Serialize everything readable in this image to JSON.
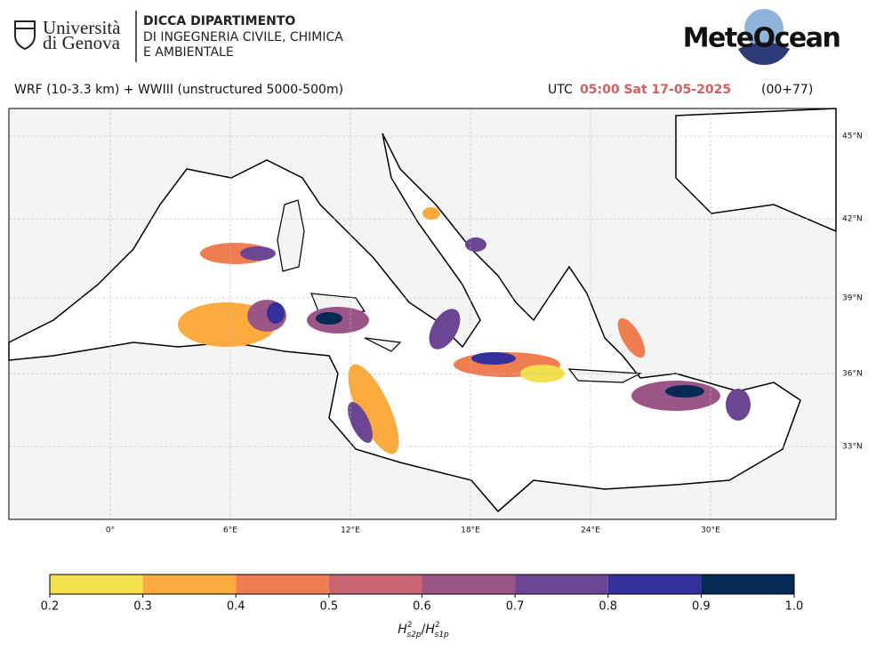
{
  "header": {
    "university": [
      "Università",
      "di Genova"
    ],
    "department": [
      "DICCA DIPARTIMENTO",
      "DI INGEGNERIA CIVILE, CHIMICA",
      "E AMBIENTALE"
    ],
    "logo": "MeteOcean"
  },
  "info": {
    "model": "WRF (10-3.3 km) + WWIII (unstructured 5000-500m)",
    "utc": "UTC",
    "time": "05:00 Sat 17-05-2025",
    "lead": "(00+77)"
  },
  "map": {
    "lon_ticks": [
      {
        "value": 0,
        "label": "0°"
      },
      {
        "value": 6,
        "label": "6°E"
      },
      {
        "value": 12,
        "label": "12°E"
      },
      {
        "value": 18,
        "label": "18°E"
      },
      {
        "value": 24,
        "label": "24°E"
      },
      {
        "value": 30,
        "label": "30°E"
      }
    ],
    "lat_ticks": [
      {
        "value": 45,
        "label": "45°N"
      },
      {
        "value": 42,
        "label": "42°N"
      },
      {
        "value": 39,
        "label": "39°N"
      },
      {
        "value": 36,
        "label": "36°N"
      },
      {
        "value": 33,
        "label": "33°N"
      }
    ]
  },
  "colorbar": {
    "ticks": [
      0.2,
      0.3,
      0.4,
      0.5,
      0.6,
      0.7,
      0.8,
      0.9,
      {
        "value": 1,
        "label": "1.0"
      }
    ],
    "colors": [
      "#f2e14c",
      "#fbab3e",
      "#ef7d50",
      "#c96473",
      "#9b5587",
      "#6a4694",
      "#33309b",
      "#032a52"
    ],
    "label": {
      "numerator": {
        "symbol": "H",
        "sup": "2",
        "sub": "s2p"
      },
      "separator": "/",
      "denominator": {
        "symbol": "H",
        "sup": "2",
        "sub": "s1p"
      }
    }
  }
}
